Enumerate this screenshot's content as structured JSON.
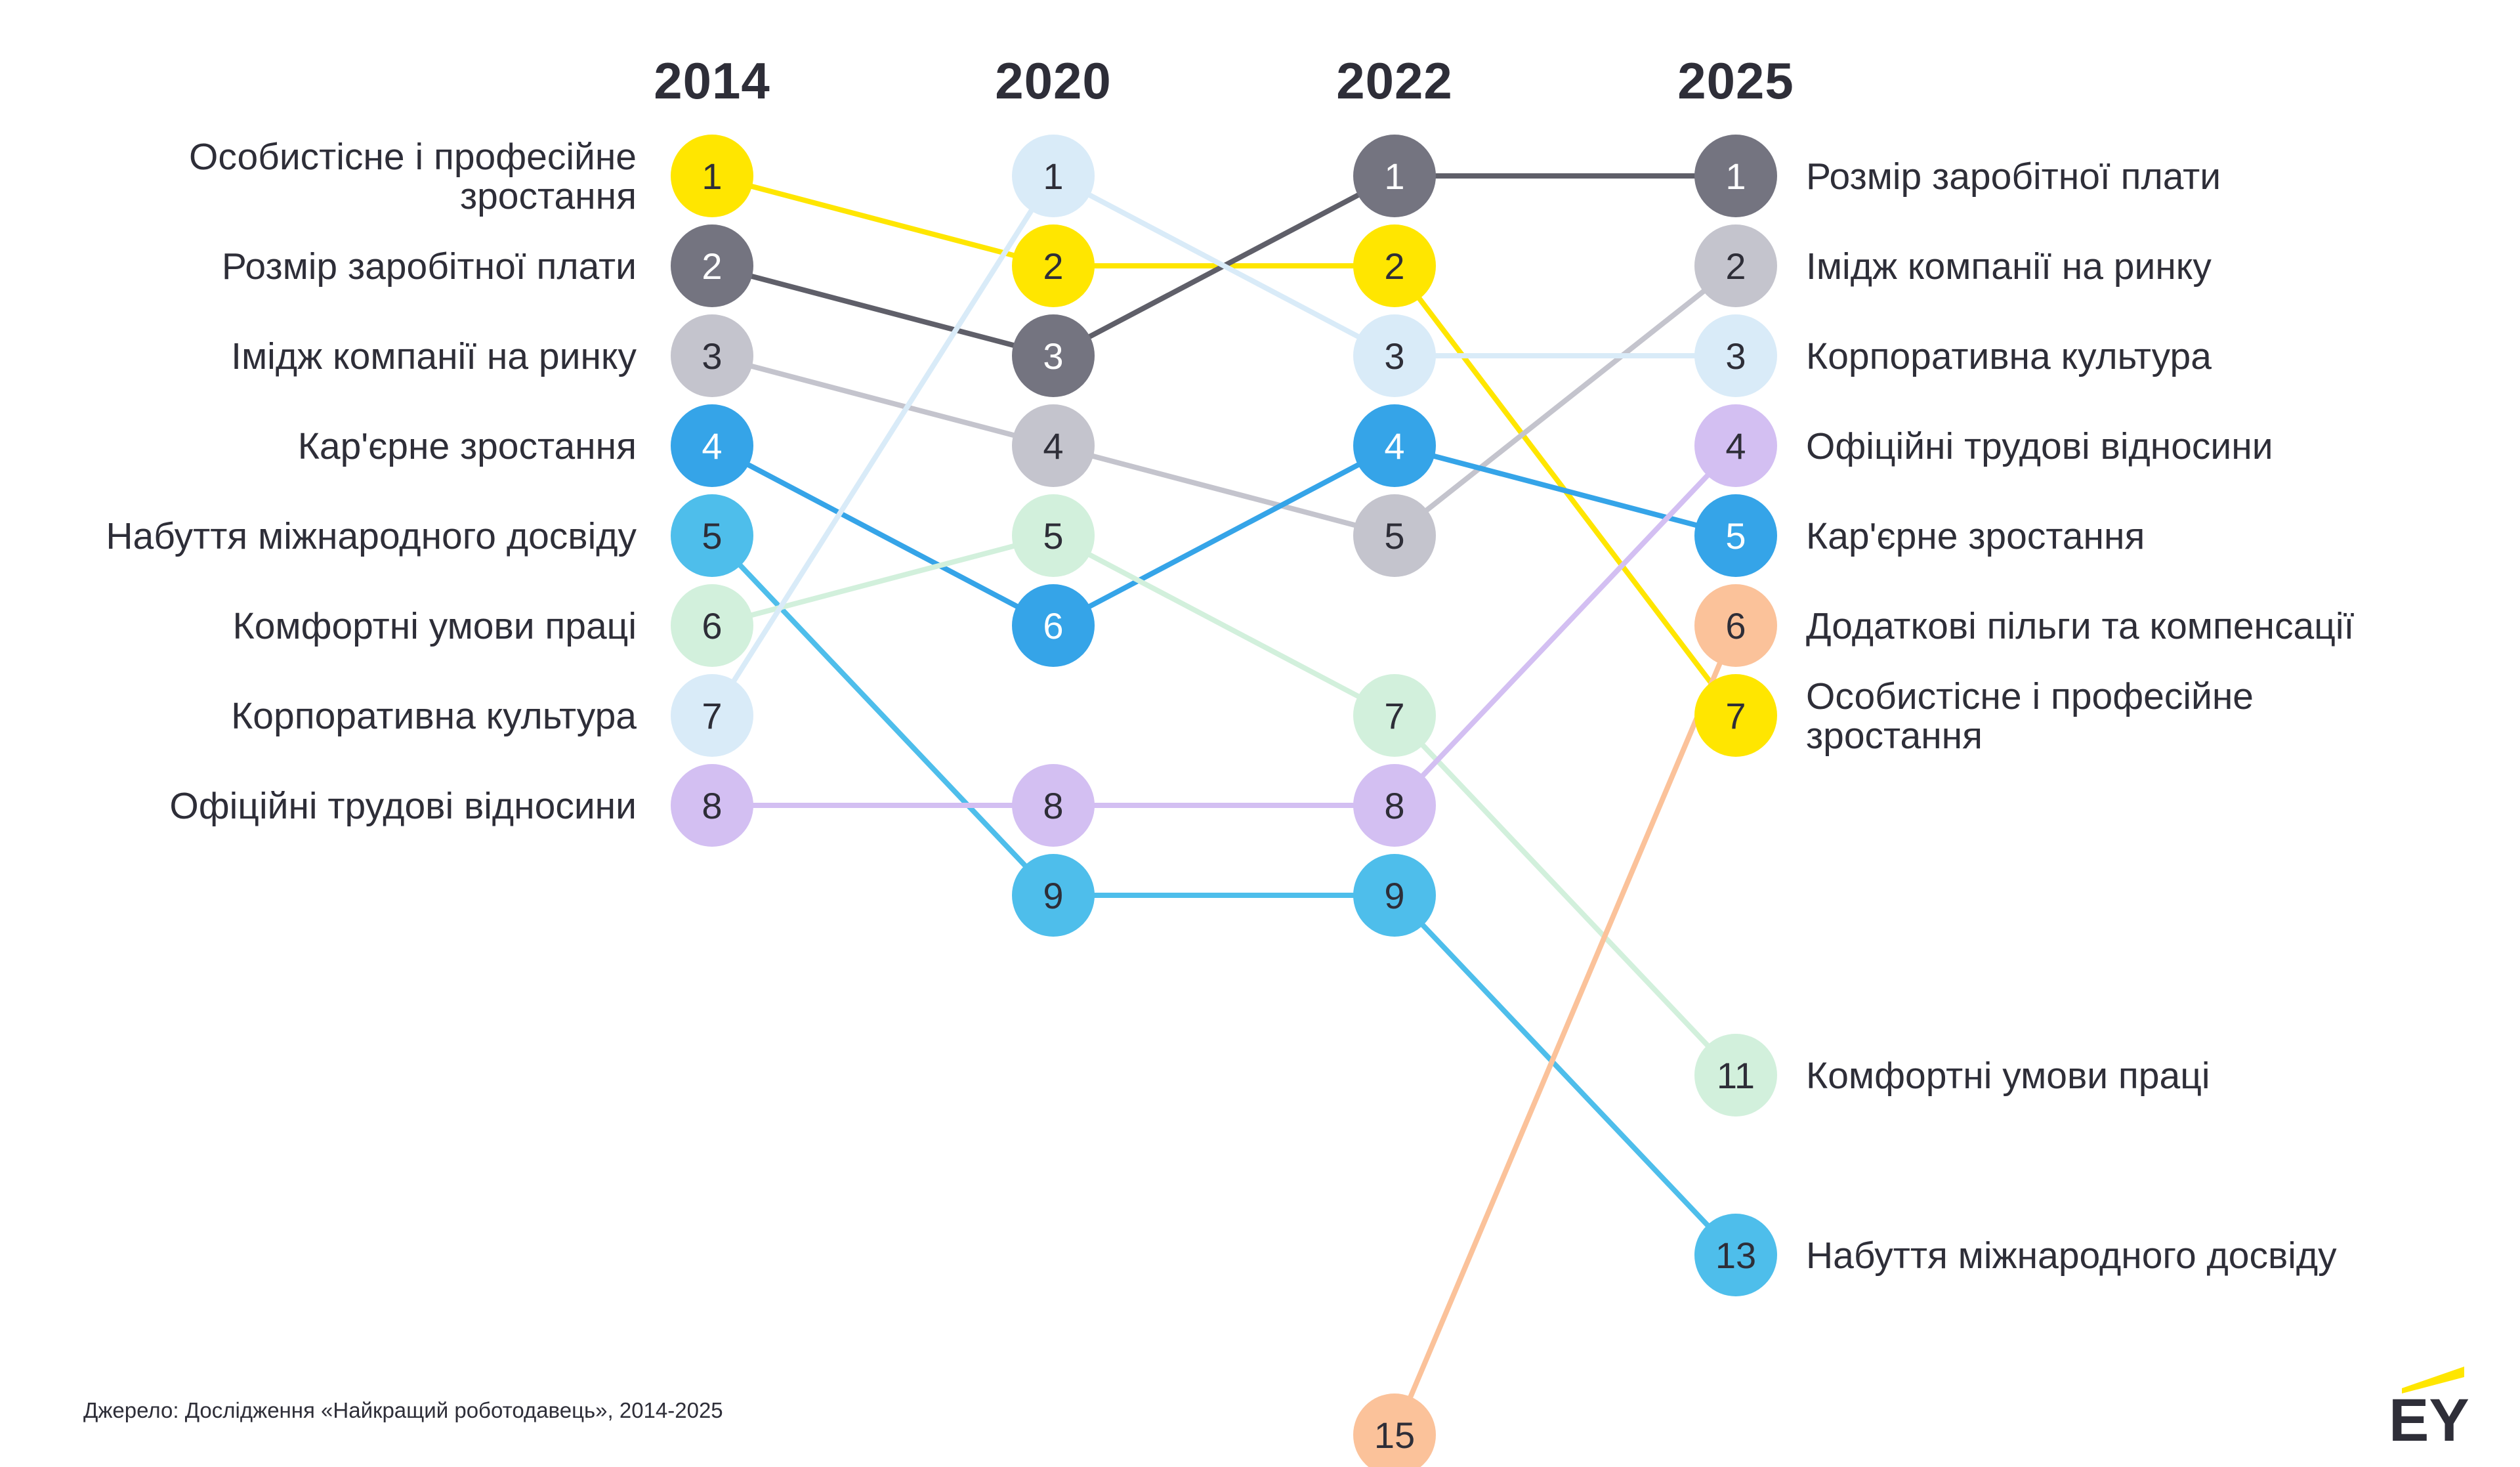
{
  "source": "Джерело: Дослідження «Найкращий роботодавець», 2014-2025",
  "logo": {
    "text": "EY",
    "accent": "#ffe600"
  },
  "chart_data": {
    "type": "bump",
    "years": [
      "2014",
      "2020",
      "2022",
      "2025"
    ],
    "left_labels": [
      {
        "rank": 1,
        "lines": [
          "Особистісне і професійне",
          "зростання"
        ]
      },
      {
        "rank": 2,
        "lines": [
          "Розмір заробітної плати"
        ]
      },
      {
        "rank": 3,
        "lines": [
          "Імідж компанії на ринку"
        ]
      },
      {
        "rank": 4,
        "lines": [
          "Кар'єрне зростання"
        ]
      },
      {
        "rank": 5,
        "lines": [
          "Набуття міжнародного досвіду"
        ]
      },
      {
        "rank": 6,
        "lines": [
          "Комфортні умови праці"
        ]
      },
      {
        "rank": 7,
        "lines": [
          "Корпоративна культура"
        ]
      },
      {
        "rank": 8,
        "lines": [
          "Офіційні трудові відносини"
        ]
      }
    ],
    "right_labels": [
      {
        "rank": 1,
        "lines": [
          "Розмір заробітної плати"
        ]
      },
      {
        "rank": 2,
        "lines": [
          "Імідж компанії на ринку"
        ]
      },
      {
        "rank": 3,
        "lines": [
          "Корпоративна культура"
        ]
      },
      {
        "rank": 4,
        "lines": [
          "Офіційні трудові відносини"
        ]
      },
      {
        "rank": 5,
        "lines": [
          "Кар'єрне зростання"
        ]
      },
      {
        "rank": 6,
        "lines": [
          "Додаткові пільги та компенсації"
        ]
      },
      {
        "rank": 7,
        "lines": [
          "Особистісне і професійне",
          "зростання"
        ]
      },
      {
        "rank": 11,
        "lines": [
          "Комфортні умови праці"
        ]
      },
      {
        "rank": 13,
        "lines": [
          "Набуття міжнародного досвіду"
        ]
      }
    ],
    "series": [
      {
        "key": "growth",
        "color": "#ffe600",
        "text_color": "#2e2e38",
        "ranks": [
          1,
          2,
          2,
          7
        ]
      },
      {
        "key": "salary",
        "color": "#747480",
        "text_color": "#ffffff",
        "ranks": [
          2,
          3,
          1,
          1
        ]
      },
      {
        "key": "image",
        "color": "#c4c4cd",
        "text_color": "#2e2e38",
        "ranks": [
          3,
          4,
          5,
          2
        ]
      },
      {
        "key": "career",
        "color": "#35a4e8",
        "text_color": "#ffffff",
        "ranks": [
          4,
          6,
          4,
          5
        ]
      },
      {
        "key": "international",
        "color": "#4ebeeb",
        "text_color": "#2e2e38",
        "ranks": [
          5,
          9,
          9,
          13
        ]
      },
      {
        "key": "comfort",
        "color": "#d2f0dc",
        "text_color": "#2e2e38",
        "ranks": [
          6,
          5,
          7,
          11
        ]
      },
      {
        "key": "culture",
        "color": "#d9ebf8",
        "text_color": "#2e2e38",
        "ranks": [
          7,
          1,
          3,
          3
        ]
      },
      {
        "key": "official",
        "color": "#d3bff2",
        "text_color": "#2e2e38",
        "ranks": [
          8,
          8,
          8,
          4
        ]
      },
      {
        "key": "benefits",
        "color": "#fbc29a",
        "text_color": "#2e2e38",
        "ranks": [
          null,
          null,
          15,
          6
        ]
      }
    ],
    "line_colors": {
      "growth": "#ffe600",
      "salary": "#5f5f69",
      "image": "#c4c4cd",
      "career": "#35a4e8",
      "international": "#4ebeeb",
      "comfort": "#d2f0dc",
      "culture": "#d9ebf8",
      "official": "#d3bff2",
      "benefits": "#fbc29a"
    }
  }
}
